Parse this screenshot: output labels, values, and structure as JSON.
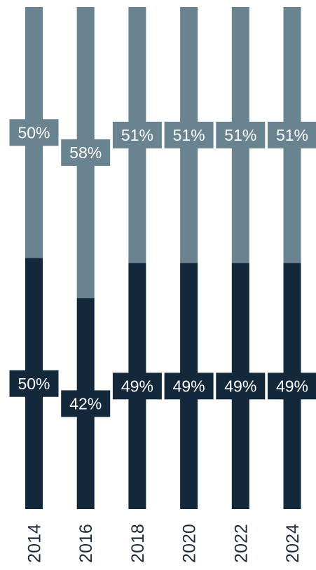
{
  "chart_data": {
    "type": "bar",
    "stacked": true,
    "normalized": true,
    "categories": [
      "2014",
      "2016",
      "2018",
      "2020",
      "2022",
      "2024"
    ],
    "series": [
      {
        "values": [
          50,
          42,
          49,
          49,
          49,
          49
        ],
        "color": "#14283c"
      },
      {
        "values": [
          50,
          58,
          51,
          51,
          51,
          51
        ],
        "color": "#6a8390"
      }
    ],
    "data_labels": {
      "bottom": [
        "50%",
        "42%",
        "49%",
        "49%",
        "49%",
        "49%"
      ],
      "top": [
        "50%",
        "58%",
        "51%",
        "51%",
        "51%",
        "51%"
      ]
    },
    "ylim": [
      0,
      100
    ],
    "grid": false,
    "legend": "none",
    "tick_label_rotation": "vertical"
  }
}
